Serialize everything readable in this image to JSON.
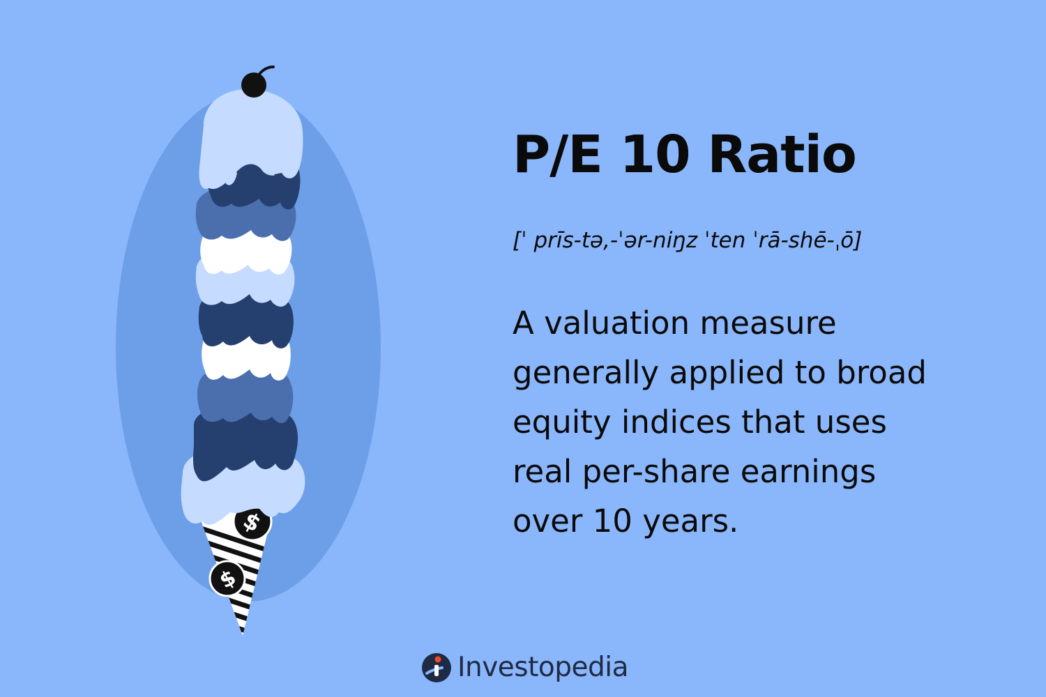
{
  "title": "P/E 10 Ratio",
  "pronunciation": "[ˈ prīs-tə,-ˈər-niŋz ˈten ˈrā-shē-ˌō]",
  "definition_lines": [
    "A valuation measure",
    "generally applied to broad",
    "equity indices that uses",
    "real per-share earnings",
    "over 10 years."
  ],
  "brand": {
    "name": "Investopedia",
    "icon": "investopedia-logo-icon"
  },
  "illustration": {
    "subject": "ice-cream-cone-icon",
    "cone_symbol": "$"
  },
  "colors": {
    "background": "#8ab6fb",
    "halo": "#6d9ee8",
    "scoop_light": "#c5dbff",
    "scoop_white": "#ffffff",
    "scoop_mid": "#4a6fac",
    "scoop_dark": "#253f6e",
    "cherry": "#111111",
    "text": "#0a0a0a",
    "brand_text": "#1f2a44",
    "brand_accent": "#ef4a23"
  }
}
